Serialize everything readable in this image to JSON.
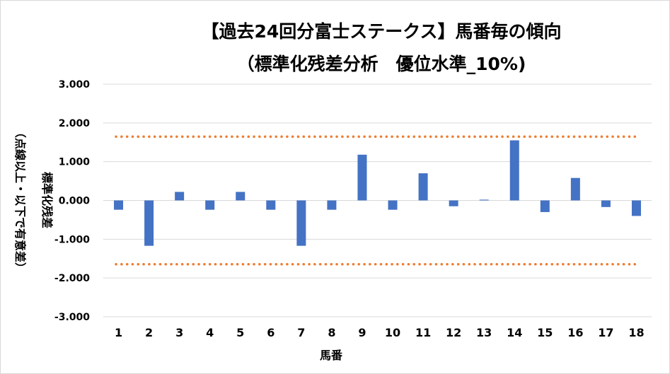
{
  "chart_data": {
    "type": "bar",
    "title_line1": "【過去24回分富士ステークス】馬番毎の傾向",
    "title_line2": "（標準化残差分析　優位水準_10%)",
    "xlabel": "馬番",
    "ylabel_line1": "標準化残差",
    "ylabel_line2": "（点線以上・以下で有意差）",
    "categories": [
      "1",
      "2",
      "3",
      "4",
      "5",
      "6",
      "7",
      "8",
      "9",
      "10",
      "11",
      "12",
      "13",
      "14",
      "15",
      "16",
      "17",
      "18"
    ],
    "values": [
      -0.24,
      -1.17,
      0.22,
      -0.24,
      0.22,
      -0.24,
      -1.17,
      -0.24,
      1.18,
      -0.24,
      0.7,
      -0.15,
      0.02,
      1.55,
      -0.3,
      0.58,
      -0.17,
      -0.4
    ],
    "ylim": [
      -3,
      3
    ],
    "yticks": [
      "3.000",
      "2.000",
      "1.000",
      "0.000",
      "-1.000",
      "-2.000",
      "-3.000"
    ],
    "ytick_values": [
      3,
      2,
      1,
      0,
      -1,
      -2,
      -3
    ],
    "threshold_upper": 1.645,
    "threshold_lower": -1.645,
    "grid": true,
    "bar_color": "#4472c4",
    "threshold_color": "#ed7d31",
    "grid_color": "#d9d9d9"
  }
}
